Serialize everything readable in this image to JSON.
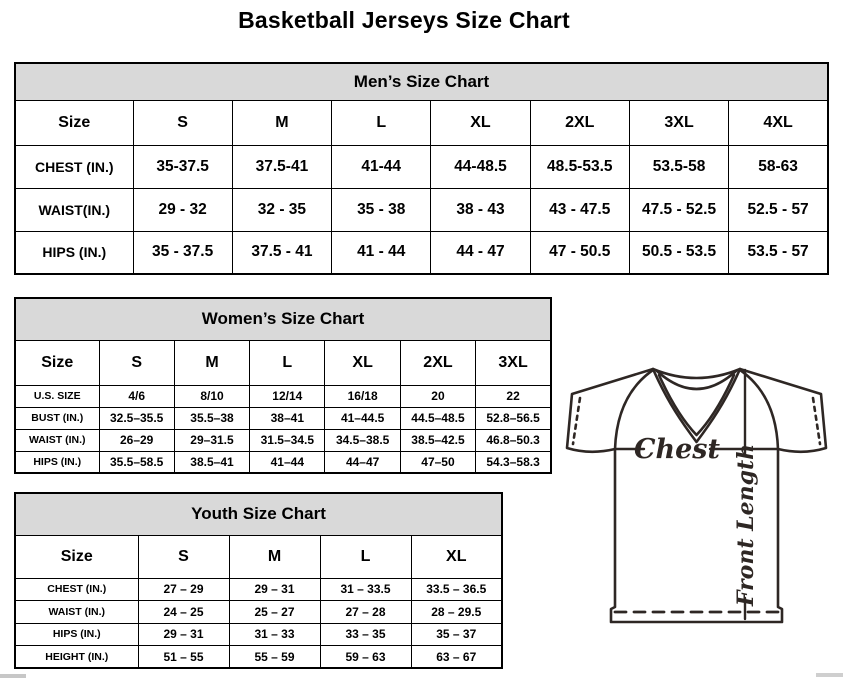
{
  "page": {
    "title": "Basketball Jerseys Size Chart"
  },
  "mens": {
    "title": "Men’s Size Chart",
    "columns": [
      "Size",
      "S",
      "M",
      "L",
      "XL",
      "2XL",
      "3XL",
      "4XL"
    ],
    "rows": [
      {
        "label": "CHEST (IN.)",
        "values": [
          "35-37.5",
          "37.5-41",
          "41-44",
          "44-48.5",
          "48.5-53.5",
          "53.5-58",
          "58-63"
        ]
      },
      {
        "label": "WAIST(IN.)",
        "values": [
          "29 - 32",
          "32 - 35",
          "35 - 38",
          "38 - 43",
          "43 - 47.5",
          "47.5 - 52.5",
          "52.5 - 57"
        ]
      },
      {
        "label": "HIPS (IN.)",
        "values": [
          "35 - 37.5",
          "37.5 - 41",
          "41 - 44",
          "44 - 47",
          "47 - 50.5",
          "50.5 - 53.5",
          "53.5 - 57"
        ]
      }
    ]
  },
  "womens": {
    "title": "Women’s Size Chart",
    "columns": [
      "Size",
      "S",
      "M",
      "L",
      "XL",
      "2XL",
      "3XL"
    ],
    "rows": [
      {
        "label": "U.S. SIZE",
        "values": [
          "4/6",
          "8/10",
          "12/14",
          "16/18",
          "20",
          "22"
        ]
      },
      {
        "label": "BUST (IN.)",
        "values": [
          "32.5–35.5",
          "35.5–38",
          "38–41",
          "41–44.5",
          "44.5–48.5",
          "52.8–56.5"
        ]
      },
      {
        "label": "WAIST (IN.)",
        "values": [
          "26–29",
          "29–31.5",
          "31.5–34.5",
          "34.5–38.5",
          "38.5–42.5",
          "46.8–50.3"
        ]
      },
      {
        "label": "HIPS (IN.)",
        "values": [
          "35.5–58.5",
          "38.5–41",
          "41–44",
          "44–47",
          "47–50",
          "54.3–58.3"
        ]
      }
    ]
  },
  "youth": {
    "title": "Youth Size Chart",
    "columns": [
      "Size",
      "S",
      "M",
      "L",
      "XL"
    ],
    "rows": [
      {
        "label": "CHEST (IN.)",
        "values": [
          "27 – 29",
          "29 – 31",
          "31 – 33.5",
          "33.5 – 36.5"
        ]
      },
      {
        "label": "WAIST (IN.)",
        "values": [
          "24 – 25",
          "25 – 27",
          "27 – 28",
          "28 – 29.5"
        ]
      },
      {
        "label": "HIPS (IN.)",
        "values": [
          "29 – 31",
          "31 – 33",
          "33 – 35",
          "35 – 37"
        ]
      },
      {
        "label": "HEIGHT (IN.)",
        "values": [
          "51 – 55",
          "55 – 59",
          "59 – 63",
          "63 – 67"
        ]
      }
    ]
  },
  "diagram": {
    "chest_label": "Chest",
    "front_length_label": "Front Length"
  },
  "colors": {
    "table_header_bg": "#d9d9d9",
    "table_border": "#000000",
    "jersey_line": "#2e2724"
  }
}
